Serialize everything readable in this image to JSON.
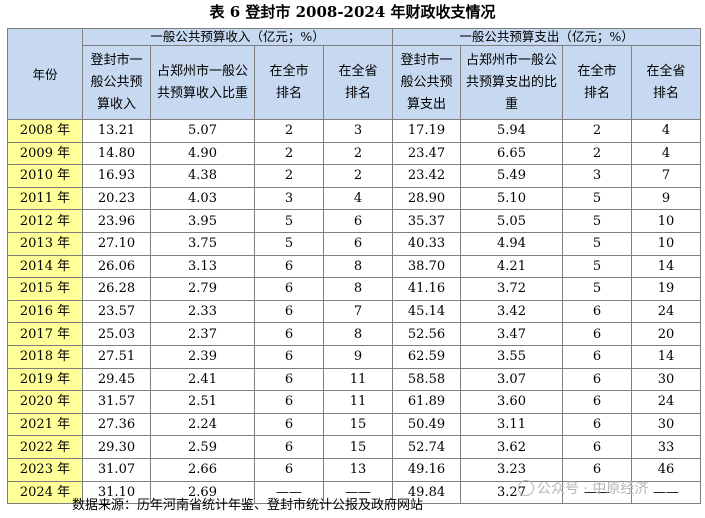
{
  "title": "表 6  登封市 2008-2024 年财政收支情况",
  "header": {
    "year": "年份",
    "income_group": "一般公共预算收入（亿元；%）",
    "expense_group": "一般公共预算支出（亿元；%）",
    "income_cols": [
      "登封市一般公共预算收入",
      "占郑州市一般公共预算收入比重",
      "在全市排名",
      "在全省排名"
    ],
    "expense_cols": [
      "登封市一般公共预算支出",
      "占郑州市一般公共预算支出的比重",
      "在全市排名",
      "在全省排名"
    ]
  },
  "rows": [
    [
      "2008 年",
      "13.21",
      "5.07",
      "2",
      "3",
      "17.19",
      "5.94",
      "2",
      "4"
    ],
    [
      "2009 年",
      "14.80",
      "4.90",
      "2",
      "2",
      "23.47",
      "6.65",
      "2",
      "4"
    ],
    [
      "2010 年",
      "16.93",
      "4.38",
      "2",
      "2",
      "23.42",
      "5.49",
      "3",
      "7"
    ],
    [
      "2011 年",
      "20.23",
      "4.03",
      "3",
      "4",
      "28.90",
      "5.10",
      "5",
      "9"
    ],
    [
      "2012 年",
      "23.96",
      "3.95",
      "5",
      "6",
      "35.37",
      "5.05",
      "5",
      "10"
    ],
    [
      "2013 年",
      "27.10",
      "3.75",
      "5",
      "6",
      "40.33",
      "4.94",
      "5",
      "10"
    ],
    [
      "2014 年",
      "26.06",
      "3.13",
      "6",
      "8",
      "38.70",
      "4.21",
      "5",
      "14"
    ],
    [
      "2015 年",
      "26.28",
      "2.79",
      "6",
      "8",
      "41.16",
      "3.72",
      "5",
      "19"
    ],
    [
      "2016 年",
      "23.57",
      "2.33",
      "6",
      "7",
      "45.14",
      "3.42",
      "6",
      "24"
    ],
    [
      "2017 年",
      "25.03",
      "2.37",
      "6",
      "8",
      "52.56",
      "3.47",
      "6",
      "20"
    ],
    [
      "2018 年",
      "27.51",
      "2.39",
      "6",
      "9",
      "62.59",
      "3.55",
      "6",
      "14"
    ],
    [
      "2019 年",
      "29.45",
      "2.41",
      "6",
      "11",
      "58.58",
      "3.07",
      "6",
      "30"
    ],
    [
      "2020 年",
      "31.57",
      "2.51",
      "6",
      "11",
      "61.89",
      "3.60",
      "6",
      "24"
    ],
    [
      "2021 年",
      "27.36",
      "2.24",
      "6",
      "15",
      "50.49",
      "3.11",
      "6",
      "30"
    ],
    [
      "2022 年",
      "29.30",
      "2.59",
      "6",
      "15",
      "52.74",
      "3.62",
      "6",
      "33"
    ],
    [
      "2023 年",
      "31.07",
      "2.66",
      "6",
      "13",
      "49.16",
      "3.23",
      "6",
      "46"
    ],
    [
      "2024 年",
      "31.10",
      "2.69",
      "——",
      "——",
      "49.84",
      "3.27",
      "——",
      "——"
    ]
  ],
  "source": "数据来源：历年河南省统计年鉴、登封市统计公报及政府网站",
  "watermark": "公众号 · 中原经济"
}
